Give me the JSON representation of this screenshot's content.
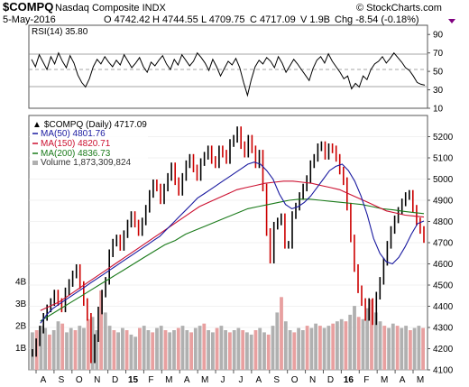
{
  "header": {
    "symbol": "$COMPQ",
    "name": "Nasdaq Composite INDX",
    "brand": "© StockCharts.com",
    "date": "5-May-2016",
    "open": "O 4742.42",
    "high": "H 4744.55",
    "low": "L 4709.75",
    "close": "C 4717.09",
    "volume": "V 1.9B",
    "change": "Chg -8.54 (-0.18%)"
  },
  "colors": {
    "ma50": "#1a1aa0",
    "ma150": "#cc1030",
    "ma200": "#1a7a1a",
    "volume_up": "#b0b0b0",
    "volume_down": "#e8a0a0",
    "down_candle": "#cc0000",
    "change_marker": "#800080"
  },
  "chart_data": [
    {
      "type": "line",
      "title": "RSI(14) 35.80",
      "ylim": [
        10,
        100
      ],
      "yticks": [
        "90",
        "70",
        "50",
        "30",
        "10"
      ],
      "reference_lines": [
        70,
        50,
        30
      ],
      "series": [
        {
          "name": "RSI(14)",
          "values": [
            63,
            55,
            68,
            60,
            52,
            66,
            58,
            70,
            61,
            54,
            67,
            59,
            46,
            38,
            33,
            42,
            55,
            63,
            58,
            66,
            60,
            55,
            62,
            57,
            68,
            61,
            54,
            59,
            65,
            55,
            49,
            60,
            56,
            62,
            67,
            58,
            52,
            63,
            57,
            68,
            62,
            56,
            61,
            70,
            65,
            59,
            51,
            63,
            55,
            45,
            53,
            61,
            57,
            64,
            54,
            38,
            24,
            41,
            55,
            62,
            58,
            65,
            61,
            54,
            66,
            59,
            49,
            56,
            63,
            58,
            52,
            46,
            40,
            53,
            62,
            66,
            59,
            69,
            61,
            55,
            49,
            42,
            45,
            31,
            37,
            33,
            45,
            41,
            52,
            58,
            61,
            66,
            59,
            64,
            70,
            65,
            60,
            54,
            51,
            45,
            38,
            36,
            35
          ]
        }
      ]
    },
    {
      "type": "line",
      "title": "$COMPQ (Daily) 4717.09",
      "ylim": [
        4100,
        5300
      ],
      "yticks": [
        "5200",
        "5100",
        "5000",
        "4900",
        "4800",
        "4700",
        "4600",
        "4500",
        "4400",
        "4300",
        "4200",
        "4100"
      ],
      "volume_ticks": [
        "4B",
        "3B",
        "2B",
        "1B"
      ],
      "x_labels": [
        "A",
        "S",
        "O",
        "N",
        "D",
        "15",
        "F",
        "M",
        "A",
        "M",
        "J",
        "J",
        "A",
        "S",
        "O",
        "N",
        "D",
        "16",
        "F",
        "M",
        "A",
        "M"
      ],
      "series": [
        {
          "name": "Price",
          "values": [
            4180,
            4230,
            4290,
            4350,
            4390,
            4420,
            4460,
            4420,
            4390,
            4470,
            4510,
            4550,
            4580,
            4500,
            4420,
            4350,
            4150,
            4250,
            4380,
            4460,
            4520,
            4650,
            4700,
            4720,
            4680,
            4740,
            4790,
            4830,
            4790,
            4750,
            4800,
            4860,
            4930,
            4980,
            4960,
            4900,
            4960,
            5010,
            5060,
            4990,
            4940,
            5010,
            5070,
            5100,
            5050,
            5010,
            5080,
            5110,
            5140,
            5090,
            5070,
            5140,
            5120,
            5090,
            5170,
            5190,
            5230,
            5160,
            5120,
            5190,
            5140,
            5070,
            5120,
            4960,
            4750,
            4620,
            4780,
            4800,
            4820,
            4690,
            4690,
            4830,
            4870,
            4920,
            4960,
            5000,
            5070,
            5100,
            5150,
            5160,
            5110,
            5150,
            5140,
            5100,
            5040,
            4990,
            4870,
            4720,
            4580,
            4480,
            4420,
            4350,
            4420,
            4330,
            4450,
            4520,
            4610,
            4690,
            4760,
            4810,
            4850,
            4890,
            4920,
            4930,
            4860,
            4800,
            4760,
            4717
          ]
        },
        {
          "name": "MA(50) 4801.76",
          "values": [
            4320,
            4360,
            4390,
            4410,
            4430,
            4450,
            4470,
            4490,
            4510,
            4530,
            4550,
            4570,
            4590,
            4610,
            4630,
            4650,
            4670,
            4690,
            4710,
            4730,
            4760,
            4790,
            4820,
            4850,
            4880,
            4910,
            4930,
            4950,
            4970,
            4990,
            5010,
            5030,
            5050,
            5070,
            5080,
            5070,
            5040,
            5000,
            4930,
            4880,
            4860,
            4870,
            4890,
            4920,
            4960,
            5000,
            5040,
            5060,
            5070,
            5040,
            4990,
            4920,
            4830,
            4720,
            4650,
            4610,
            4600,
            4630,
            4680,
            4740,
            4790,
            4802
          ]
        },
        {
          "name": "MA(150) 4820.71",
          "values": [
            4380,
            4400,
            4420,
            4450,
            4480,
            4510,
            4540,
            4570,
            4600,
            4630,
            4660,
            4690,
            4720,
            4750,
            4780,
            4810,
            4840,
            4870,
            4890,
            4910,
            4930,
            4950,
            4960,
            4970,
            4980,
            4985,
            4990,
            4990,
            4985,
            4980,
            4970,
            4960,
            4950,
            4930,
            4910,
            4890,
            4870,
            4850,
            4840,
            4830,
            4825,
            4821
          ]
        },
        {
          "name": "MA(200) 4836.73",
          "values": [
            4330,
            4360,
            4390,
            4420,
            4450,
            4480,
            4510,
            4540,
            4570,
            4600,
            4630,
            4660,
            4690,
            4710,
            4740,
            4760,
            4780,
            4800,
            4820,
            4840,
            4860,
            4870,
            4880,
            4890,
            4900,
            4905,
            4905,
            4900,
            4895,
            4890,
            4885,
            4880,
            4870,
            4860,
            4855,
            4848,
            4842,
            4837
          ]
        }
      ]
    },
    {
      "type": "bar",
      "title": "Volume 1,873,309,824",
      "ylim": [
        0,
        4500000000
      ],
      "values": [
        1.7,
        1.8,
        2.0,
        1.9,
        1.6,
        1.8,
        2.2,
        2.1,
        1.7,
        1.9,
        1.8,
        2.0,
        1.9,
        2.3,
        2.4,
        1.8,
        3.6,
        2.6,
        2.0,
        1.8,
        1.7,
        1.9,
        1.8,
        1.6,
        1.5,
        1.9,
        2.0,
        1.8,
        1.7,
        1.9,
        2.0,
        1.8,
        1.7,
        1.8,
        1.9,
        2.0,
        1.8,
        1.7,
        1.9,
        2.0,
        2.1,
        1.8,
        1.7,
        1.9,
        2.0,
        1.8,
        1.7,
        1.8,
        1.9,
        1.8,
        1.7,
        1.6,
        1.8,
        1.9,
        1.7,
        1.6,
        2.0,
        2.6,
        3.3,
        2.2,
        1.8,
        1.7,
        1.9,
        1.8,
        2.0,
        1.9,
        2.1,
        2.0,
        1.9,
        2.0,
        2.1,
        2.2,
        2.3,
        2.2,
        2.5,
        2.9,
        2.4,
        2.3,
        2.8,
        3.2,
        2.6,
        2.2,
        2.0,
        1.9,
        2.1,
        2.0,
        1.9,
        2.0,
        1.8,
        1.9,
        2.0,
        1.9
      ]
    }
  ]
}
